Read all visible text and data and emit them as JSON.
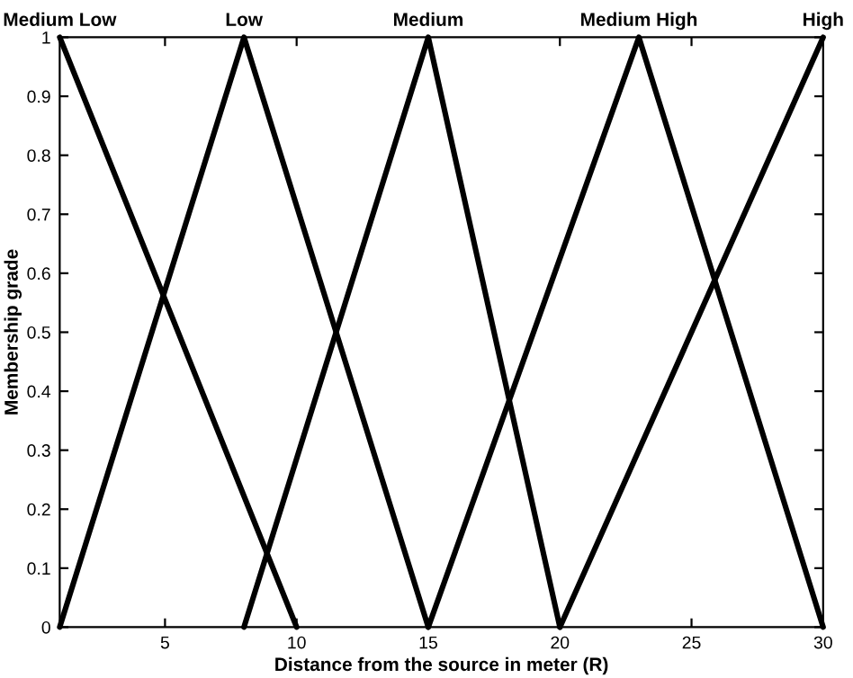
{
  "chart_data": {
    "type": "line",
    "xlabel": "Distance from the source in meter (R)",
    "ylabel": "Membership grade",
    "series": [
      {
        "color": "#000000",
        "x": [
          1,
          10
        ],
        "values": [
          1,
          0
        ]
      },
      {
        "color": "#000000",
        "x": [
          1,
          8,
          15
        ],
        "values": [
          0,
          1,
          0
        ]
      },
      {
        "color": "#000000",
        "x": [
          8,
          15,
          20
        ],
        "values": [
          0,
          1,
          0
        ]
      },
      {
        "color": "#000000",
        "x": [
          15,
          23,
          30
        ],
        "values": [
          0,
          1,
          0
        ]
      },
      {
        "color": "#000000",
        "x": [
          20,
          30
        ],
        "values": [
          0,
          1
        ]
      }
    ],
    "annotations": [
      {
        "text": "Medium Low",
        "x": 1,
        "y": 1
      },
      {
        "text": "Low",
        "x": 8,
        "y": 1
      },
      {
        "text": "Medium",
        "x": 15,
        "y": 1
      },
      {
        "text": "Medium High",
        "x": 23,
        "y": 1
      },
      {
        "text": "High",
        "x": 30,
        "y": 1
      }
    ],
    "xlim": [
      1,
      30
    ],
    "xticks": [
      5,
      10,
      15,
      20,
      25,
      30
    ],
    "ylim": [
      0,
      1
    ],
    "yticks": [
      0,
      0.1,
      0.2,
      0.3,
      0.4,
      0.5,
      0.6,
      0.7,
      0.8,
      0.9,
      1
    ],
    "grid": false,
    "legend": false,
    "line_style": "solid",
    "marker": "none"
  }
}
